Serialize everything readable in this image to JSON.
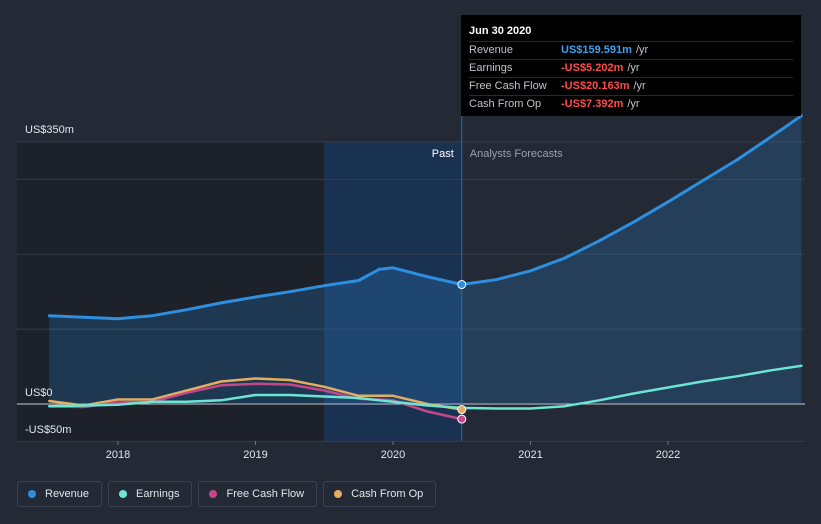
{
  "tooltip": {
    "date": "Jun 30 2020",
    "rows": [
      {
        "label": "Revenue",
        "value": "US$159.591m",
        "unit": "/yr",
        "color": "#3aa2f0"
      },
      {
        "label": "Earnings",
        "value": "-US$5.202m",
        "unit": "/yr",
        "color": "#ff4b4b"
      },
      {
        "label": "Free Cash Flow",
        "value": "-US$20.163m",
        "unit": "/yr",
        "color": "#ff4b4b"
      },
      {
        "label": "Cash From Op",
        "value": "-US$7.392m",
        "unit": "/yr",
        "color": "#ff4b4b"
      }
    ]
  },
  "chart_data": {
    "type": "line",
    "y_unit_labels": {
      "top": "US$350m",
      "zero": "US$0",
      "bottom": "-US$50m"
    },
    "ylim": [
      -50,
      350
    ],
    "xlim": [
      2017.5,
      2022.97
    ],
    "xticks": [
      2018,
      2019,
      2020,
      2021,
      2022
    ],
    "xtick_labels": [
      "2018",
      "2019",
      "2020",
      "2021",
      "2022"
    ],
    "divider_x": 2020.5,
    "past_label": "Past",
    "forecast_label": "Analysts Forecasts",
    "past_band_start": 2019.5,
    "series": [
      {
        "name": "Revenue",
        "color": "#2d8fe0",
        "fill": true,
        "points": [
          [
            2017.5,
            118
          ],
          [
            2017.75,
            116
          ],
          [
            2018,
            114
          ],
          [
            2018.25,
            118
          ],
          [
            2018.5,
            126
          ],
          [
            2018.75,
            135
          ],
          [
            2019,
            143
          ],
          [
            2019.25,
            150
          ],
          [
            2019.5,
            158
          ],
          [
            2019.75,
            165
          ],
          [
            2019.9,
            180
          ],
          [
            2020,
            182
          ],
          [
            2020.25,
            170
          ],
          [
            2020.5,
            159.591
          ],
          [
            2020.75,
            166
          ],
          [
            2021,
            178
          ],
          [
            2021.25,
            195
          ],
          [
            2021.5,
            218
          ],
          [
            2021.75,
            243
          ],
          [
            2022,
            270
          ],
          [
            2022.25,
            298
          ],
          [
            2022.5,
            326
          ],
          [
            2022.75,
            357
          ],
          [
            2022.97,
            385
          ]
        ]
      },
      {
        "name": "Earnings",
        "color": "#6de5d4",
        "fill": false,
        "points": [
          [
            2017.5,
            -3
          ],
          [
            2017.75,
            -2
          ],
          [
            2018,
            -1
          ],
          [
            2018.25,
            3
          ],
          [
            2018.5,
            3
          ],
          [
            2018.75,
            5
          ],
          [
            2019,
            12
          ],
          [
            2019.25,
            12
          ],
          [
            2019.5,
            10
          ],
          [
            2019.75,
            8
          ],
          [
            2020,
            3
          ],
          [
            2020.25,
            -2
          ],
          [
            2020.5,
            -5.202
          ],
          [
            2020.75,
            -6
          ],
          [
            2021,
            -6
          ],
          [
            2021.25,
            -3
          ],
          [
            2021.5,
            5
          ],
          [
            2021.75,
            14
          ],
          [
            2022,
            22
          ],
          [
            2022.25,
            30
          ],
          [
            2022.5,
            37
          ],
          [
            2022.75,
            45
          ],
          [
            2022.97,
            51
          ]
        ]
      },
      {
        "name": "Free Cash Flow",
        "color": "#c4478a",
        "fill": false,
        "points": [
          [
            2017.5,
            -3
          ],
          [
            2017.75,
            -4
          ],
          [
            2018,
            2
          ],
          [
            2018.25,
            3
          ],
          [
            2018.5,
            15
          ],
          [
            2018.75,
            25
          ],
          [
            2019,
            27
          ],
          [
            2019.25,
            26
          ],
          [
            2019.5,
            18
          ],
          [
            2019.75,
            7
          ],
          [
            2020,
            5
          ],
          [
            2020.25,
            -10
          ],
          [
            2020.5,
            -20.163
          ]
        ]
      },
      {
        "name": "Cash From Op",
        "color": "#e3ad63",
        "fill": false,
        "points": [
          [
            2017.5,
            4
          ],
          [
            2017.75,
            -2
          ],
          [
            2018,
            6
          ],
          [
            2018.25,
            6
          ],
          [
            2018.5,
            18
          ],
          [
            2018.75,
            30
          ],
          [
            2019,
            34
          ],
          [
            2019.25,
            32
          ],
          [
            2019.5,
            23
          ],
          [
            2019.75,
            11
          ],
          [
            2020,
            11
          ],
          [
            2020.25,
            0
          ],
          [
            2020.5,
            -7.392
          ]
        ]
      }
    ],
    "grid": true,
    "legend_position": "bottom-left"
  },
  "legend": [
    {
      "label": "Revenue",
      "color": "#2d8fe0"
    },
    {
      "label": "Earnings",
      "color": "#6de5d4"
    },
    {
      "label": "Free Cash Flow",
      "color": "#c4478a"
    },
    {
      "label": "Cash From Op",
      "color": "#e3ad63"
    }
  ]
}
